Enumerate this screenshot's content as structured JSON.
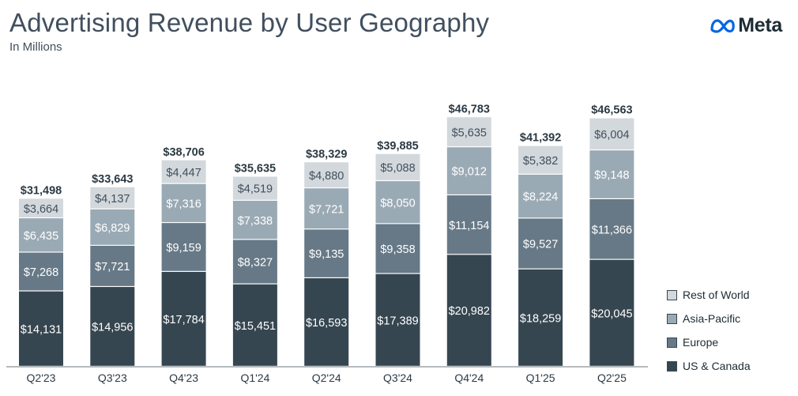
{
  "title": "Advertising Revenue by User Geography",
  "subtitle": "In Millions",
  "logo": {
    "text": "Meta"
  },
  "colors": {
    "us_canada": "#364651",
    "europe": "#677987",
    "asia_pacific": "#9aaab5",
    "rest_of_world": "#d3d8dc",
    "total_label": "#2c3a44",
    "axis": "#8a9299",
    "legend_text": "#1c2b33"
  },
  "legend": {
    "items": [
      {
        "label": "Rest of World",
        "color": "#d3d8dc"
      },
      {
        "label": "Asia-Pacific",
        "color": "#9aaab5"
      },
      {
        "label": "Europe",
        "color": "#677987"
      },
      {
        "label": "US & Canada",
        "color": "#364651"
      }
    ]
  },
  "chart_data": {
    "type": "bar",
    "stacked": true,
    "title": "Advertising Revenue by User Geography",
    "subtitle": "In Millions",
    "xlabel": "",
    "ylabel": "",
    "categories": [
      "Q2'23",
      "Q3'23",
      "Q4'23",
      "Q1'24",
      "Q2'24",
      "Q3'24",
      "Q4'24",
      "Q1'25",
      "Q2'25"
    ],
    "series": [
      {
        "name": "US & Canada",
        "color": "#364651",
        "label_color": "#ffffff",
        "values": [
          14131,
          14956,
          17784,
          15451,
          16593,
          17389,
          20982,
          18259,
          20045
        ],
        "labels": [
          "$14,131",
          "$14,956",
          "$17,784",
          "$15,451",
          "$16,593",
          "$17,389",
          "$20,982",
          "$18,259",
          "$20,045"
        ]
      },
      {
        "name": "Europe",
        "color": "#677987",
        "label_color": "#ffffff",
        "values": [
          7268,
          7721,
          9159,
          8327,
          9135,
          9358,
          11154,
          9527,
          11366
        ],
        "labels": [
          "$7,268",
          "$7,721",
          "$9,159",
          "$8,327",
          "$9,135",
          "$9,358",
          "$11,154",
          "$9,527",
          "$11,366"
        ]
      },
      {
        "name": "Asia-Pacific",
        "color": "#9aaab5",
        "label_color": "#ffffff",
        "values": [
          6435,
          6829,
          7316,
          7338,
          7721,
          8050,
          9012,
          8224,
          9148
        ],
        "labels": [
          "$6,435",
          "$6,829",
          "$7,316",
          "$7,338",
          "$7,721",
          "$8,050",
          "$9,012",
          "$8,224",
          "$9,148"
        ]
      },
      {
        "name": "Rest of World",
        "color": "#d3d8dc",
        "label_color": "#414f5e",
        "values": [
          3664,
          4137,
          4447,
          4519,
          4880,
          5088,
          5635,
          5382,
          6004
        ],
        "labels": [
          "$3,664",
          "$4,137",
          "$4,447",
          "$4,519",
          "$4,880",
          "$5,088",
          "$5,635",
          "$5,382",
          "$6,004"
        ]
      }
    ],
    "totals": [
      31498,
      33643,
      38706,
      35635,
      38329,
      39885,
      46783,
      41392,
      46563
    ],
    "total_labels": [
      "$31,498",
      "$33,643",
      "$38,706",
      "$35,635",
      "$38,329",
      "$39,885",
      "$46,783",
      "$41,392",
      "$46,563"
    ],
    "ylim": [
      0,
      50000
    ],
    "grid": false,
    "legend_position": "bottom-right"
  }
}
